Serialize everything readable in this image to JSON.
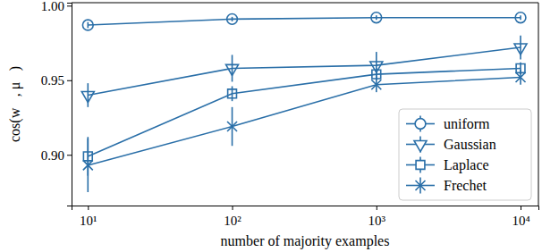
{
  "chart_data": {
    "type": "line",
    "x_label": "number of majority examples",
    "y_label": "cos(w⃗, μ⃗)",
    "x": [
      10,
      100,
      1000,
      10000
    ],
    "xlim": [
      7.7,
      13300
    ],
    "xticks": [
      {
        "value": 10,
        "label": "10¹"
      },
      {
        "value": 100,
        "label": "10²"
      },
      {
        "value": 1000,
        "label": "10³"
      },
      {
        "value": 10000,
        "label": "10⁴"
      }
    ],
    "ylim": [
      0.866,
      1.002
    ],
    "yticks": [
      {
        "value": 0.9,
        "label": "0.90"
      },
      {
        "value": 0.95,
        "label": "0.95"
      },
      {
        "value": 1.0,
        "label": "1.00"
      }
    ],
    "log": "x",
    "grid": false,
    "legend": "lower right",
    "series": [
      {
        "name": "uniform",
        "color": "#2a6fa8",
        "marker": "circle",
        "line_style": "solid",
        "values": [
          0.987,
          0.991,
          0.992,
          0.992
        ],
        "errors": [
          0.002,
          0.0015,
          0.0015,
          0.0015
        ]
      },
      {
        "name": "Gaussian",
        "color": "#2a6fa8",
        "marker": "triangle-down",
        "line_style": "solid",
        "values": [
          0.94,
          0.958,
          0.96,
          0.972
        ],
        "errors": [
          0.008,
          0.009,
          0.009,
          0.008
        ]
      },
      {
        "name": "Laplace",
        "color": "#2a6fa8",
        "marker": "square",
        "line_style": "solid",
        "values": [
          0.899,
          0.941,
          0.954,
          0.958
        ],
        "errors": [
          0.013,
          0.005,
          0.004,
          0.004
        ]
      },
      {
        "name": "Frechet",
        "color": "#2a6fa8",
        "marker": "x",
        "line_style": "solid",
        "values": [
          0.893,
          0.919,
          0.947,
          0.952
        ],
        "errors": [
          0.018,
          0.013,
          0.005,
          0.005
        ]
      }
    ]
  }
}
